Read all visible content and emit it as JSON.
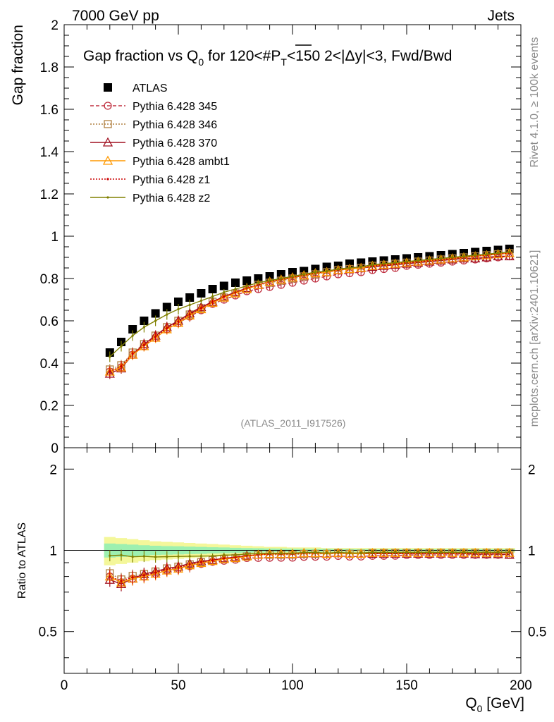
{
  "header": {
    "left": "7000 GeV pp",
    "right": "Jets"
  },
  "side_labels": {
    "top": "Rivet 4.1.0, ≥ 100k events",
    "bottom": "mcplots.cern.ch [arXiv:2401.10621]"
  },
  "chart_data": [
    {
      "type": "scatter",
      "panel": "main",
      "title": "Gap fraction vs Q0 for 120<#PT<150  2<|Δy|<3, Fwd/Bwd",
      "title_parts": {
        "a": "Gap fraction vs Q",
        "sub0": "0",
        "b": " for 120<#",
        "p": "P",
        "subT": "T",
        "c": "<150  2<|Δy|<3, Fwd/Bwd"
      },
      "ylabel": "Gap fraction",
      "xlabel": "Q0 [GeV]",
      "xlabel_parts": {
        "a": "Q",
        "sub": "0",
        "b": " [GeV]"
      },
      "xlim": [
        0,
        200
      ],
      "ylim": [
        0,
        2
      ],
      "yticks": [
        "0",
        "0.2",
        "0.4",
        "0.6",
        "0.8",
        "1",
        "1.2",
        "1.4",
        "1.6",
        "1.8",
        "2"
      ],
      "xticks": [
        "0",
        "50",
        "100",
        "150",
        "200"
      ],
      "watermark": "(ATLAS_2011_I917526)",
      "x": [
        20,
        25,
        30,
        35,
        40,
        45,
        50,
        55,
        60,
        65,
        70,
        75,
        80,
        85,
        90,
        95,
        100,
        105,
        110,
        115,
        120,
        125,
        130,
        135,
        140,
        145,
        150,
        155,
        160,
        165,
        170,
        175,
        180,
        185,
        190,
        195
      ],
      "series": [
        {
          "name": "ATLAS",
          "color": "#000000",
          "marker": "square-filled",
          "line": "none",
          "values": [
            0.45,
            0.5,
            0.56,
            0.6,
            0.635,
            0.665,
            0.69,
            0.71,
            0.73,
            0.75,
            0.765,
            0.78,
            0.79,
            0.8,
            0.81,
            0.82,
            0.83,
            0.835,
            0.845,
            0.855,
            0.86,
            0.87,
            0.875,
            0.88,
            0.885,
            0.89,
            0.895,
            0.9,
            0.905,
            0.91,
            0.915,
            0.92,
            0.925,
            0.93,
            0.935,
            0.94
          ]
        },
        {
          "name": "Pythia 6.428 345",
          "color": "#c03040",
          "marker": "circle-open",
          "line": "dashed",
          "values": [
            0.36,
            0.38,
            0.44,
            0.48,
            0.52,
            0.56,
            0.59,
            0.62,
            0.65,
            0.68,
            0.7,
            0.72,
            0.74,
            0.75,
            0.76,
            0.77,
            0.78,
            0.79,
            0.8,
            0.81,
            0.82,
            0.825,
            0.83,
            0.84,
            0.845,
            0.85,
            0.86,
            0.865,
            0.87,
            0.875,
            0.88,
            0.885,
            0.89,
            0.895,
            0.9,
            0.905
          ]
        },
        {
          "name": "Pythia 6.428 346",
          "color": "#b08040",
          "marker": "square-open",
          "line": "dotted",
          "values": [
            0.37,
            0.39,
            0.45,
            0.49,
            0.53,
            0.57,
            0.6,
            0.63,
            0.66,
            0.69,
            0.71,
            0.73,
            0.75,
            0.77,
            0.78,
            0.79,
            0.8,
            0.81,
            0.82,
            0.83,
            0.84,
            0.845,
            0.85,
            0.86,
            0.865,
            0.87,
            0.875,
            0.88,
            0.885,
            0.89,
            0.895,
            0.9,
            0.905,
            0.91,
            0.915,
            0.92
          ]
        },
        {
          "name": "Pythia 6.428 370",
          "color": "#a01020",
          "marker": "triangle-open",
          "line": "solid",
          "values": [
            0.35,
            0.375,
            0.44,
            0.49,
            0.53,
            0.57,
            0.6,
            0.635,
            0.665,
            0.69,
            0.715,
            0.735,
            0.755,
            0.77,
            0.785,
            0.795,
            0.805,
            0.815,
            0.825,
            0.83,
            0.84,
            0.845,
            0.85,
            0.855,
            0.86,
            0.865,
            0.87,
            0.875,
            0.88,
            0.885,
            0.89,
            0.895,
            0.895,
            0.9,
            0.905,
            0.905
          ]
        },
        {
          "name": "Pythia 6.428 ambt1",
          "color": "#ff9900",
          "marker": "triangle-open",
          "line": "solid",
          "values": [
            0.36,
            0.38,
            0.44,
            0.48,
            0.52,
            0.56,
            0.59,
            0.625,
            0.655,
            0.685,
            0.71,
            0.73,
            0.75,
            0.77,
            0.785,
            0.795,
            0.805,
            0.815,
            0.825,
            0.83,
            0.84,
            0.845,
            0.85,
            0.86,
            0.865,
            0.87,
            0.875,
            0.88,
            0.885,
            0.89,
            0.895,
            0.9,
            0.905,
            0.91,
            0.915,
            0.92
          ]
        },
        {
          "name": "Pythia 6.428 z1",
          "color": "#cc0000",
          "marker": "dot",
          "line": "dotted",
          "values": [
            0.36,
            0.385,
            0.445,
            0.485,
            0.525,
            0.565,
            0.595,
            0.63,
            0.66,
            0.69,
            0.715,
            0.735,
            0.755,
            0.77,
            0.785,
            0.795,
            0.805,
            0.815,
            0.825,
            0.835,
            0.84,
            0.85,
            0.855,
            0.86,
            0.865,
            0.87,
            0.875,
            0.88,
            0.885,
            0.89,
            0.895,
            0.9,
            0.905,
            0.91,
            0.915,
            0.92
          ]
        },
        {
          "name": "Pythia 6.428 z2",
          "color": "#808000",
          "marker": "dot",
          "line": "solid",
          "values": [
            0.43,
            0.48,
            0.53,
            0.57,
            0.6,
            0.63,
            0.655,
            0.675,
            0.695,
            0.715,
            0.735,
            0.75,
            0.765,
            0.78,
            0.79,
            0.8,
            0.81,
            0.82,
            0.83,
            0.835,
            0.845,
            0.85,
            0.855,
            0.865,
            0.87,
            0.875,
            0.88,
            0.885,
            0.89,
            0.895,
            0.9,
            0.905,
            0.91,
            0.915,
            0.92,
            0.925
          ]
        }
      ]
    },
    {
      "type": "scatter",
      "panel": "ratio",
      "ylabel": "Ratio to ATLAS",
      "yscale": "log",
      "ylim": [
        0.35,
        2.4
      ],
      "yticks": [
        "0.5",
        "1",
        "2"
      ],
      "reference_line": 1,
      "band_outer": [
        0.12,
        0.11,
        0.1,
        0.09,
        0.08,
        0.075,
        0.07,
        0.065,
        0.06,
        0.055,
        0.05,
        0.045,
        0.04,
        0.035,
        0.03,
        0.03,
        0.025,
        0.025,
        0.025,
        0.02,
        0.02,
        0.02,
        0.02,
        0.02,
        0.02,
        0.02,
        0.02,
        0.02,
        0.02,
        0.02,
        0.02,
        0.02,
        0.02,
        0.02,
        0.02,
        0.02
      ],
      "band_inner": [
        0.06,
        0.055,
        0.05,
        0.045,
        0.04,
        0.037,
        0.035,
        0.032,
        0.03,
        0.027,
        0.025,
        0.022,
        0.02,
        0.018,
        0.016,
        0.015,
        0.014,
        0.013,
        0.012,
        0.012,
        0.011,
        0.011,
        0.01,
        0.01,
        0.01,
        0.01,
        0.01,
        0.01,
        0.01,
        0.01,
        0.01,
        0.01,
        0.01,
        0.01,
        0.01,
        0.01
      ]
    }
  ]
}
